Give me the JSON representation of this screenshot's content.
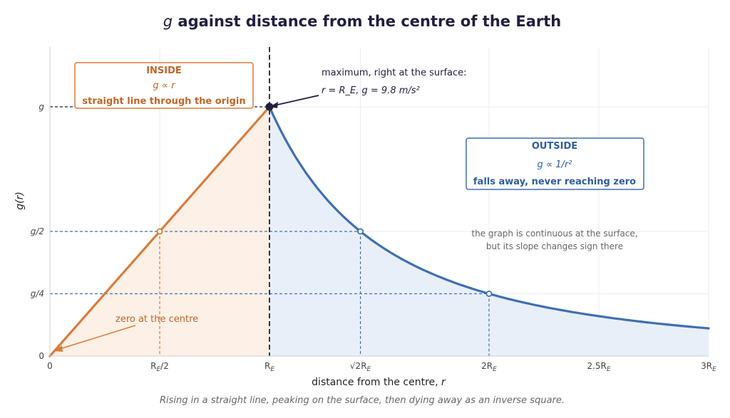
{
  "chart_data": {
    "type": "line",
    "title_symbol": "g",
    "title_rest": " against distance from the centre of the Earth",
    "xlabel": "distance from the centre,",
    "xlabel_symbol": "r",
    "ylabel": "g(r)",
    "caption": "Rising in a straight line, peaking on the surface, then dying away as an inverse square.",
    "xlim": [
      0,
      3
    ],
    "ylim": [
      0,
      1.0
    ],
    "x_unit": "R_E",
    "y_unit": "g",
    "x_ticks": [
      {
        "value": 0,
        "main": "0",
        "sub": ""
      },
      {
        "value": 0.5,
        "main": "R",
        "sub": "E",
        "tail": "/2"
      },
      {
        "value": 1.0,
        "main": "R",
        "sub": "E",
        "tail": ""
      },
      {
        "value": 1.41421,
        "main": "√2R",
        "sub": "E",
        "tail": ""
      },
      {
        "value": 2.0,
        "main": "2R",
        "sub": "E",
        "tail": ""
      },
      {
        "value": 2.5,
        "main": "2.5R",
        "sub": "E",
        "tail": ""
      },
      {
        "value": 3.0,
        "main": "3R",
        "sub": "E",
        "tail": ""
      }
    ],
    "y_ticks": [
      {
        "value": 0,
        "label": "0"
      },
      {
        "value": 0.25,
        "label": "g/4"
      },
      {
        "value": 0.5,
        "label": "g/2"
      },
      {
        "value": 1.0,
        "label": "g"
      }
    ],
    "series": [
      {
        "segment": "inside",
        "relation": "linear",
        "x": [
          0,
          0.5,
          1.0
        ],
        "y": [
          0,
          0.5,
          1.0
        ],
        "color": "#d97b3a"
      },
      {
        "segment": "outside",
        "relation": "inverse-square",
        "x": [
          1.0,
          1.41421,
          2.0,
          2.5,
          3.0
        ],
        "y": [
          1.0,
          0.5,
          0.25,
          0.16,
          0.111
        ],
        "color": "#3f6fb0"
      }
    ],
    "marked_points": [
      {
        "x": 0.5,
        "y": 0.5,
        "color": "#d97b3a"
      },
      {
        "x": 1.41421,
        "y": 0.5,
        "color": "#3f6fb0"
      },
      {
        "x": 2.0,
        "y": 0.25,
        "color": "#3f6fb0"
      },
      {
        "x": 1.0,
        "y": 1.0,
        "color": "#1f1f3f"
      }
    ],
    "annotations": {
      "inside_box": {
        "title": "INSIDE",
        "formula": "g ∝ r",
        "desc": "straight line through the origin"
      },
      "outside_box": {
        "title": "OUTSIDE",
        "formula": "g ∝ 1/r²",
        "desc": "falls away, never reaching zero"
      },
      "max_line1": "maximum, right at the surface:",
      "max_line2": "r = R_E, g = 9.8 m/s²",
      "zero_note": "zero at the centre",
      "continuity_line1": "the graph is continuous at the surface,",
      "continuity_line2": "but its slope changes sign there"
    },
    "grid": true,
    "colors": {
      "inside": "#d97b3a",
      "outside": "#3f6fb0",
      "surface_line": "#1f1f3f",
      "inside_fill": "#fdf0e6",
      "outside_fill": "#e9eff9"
    }
  }
}
